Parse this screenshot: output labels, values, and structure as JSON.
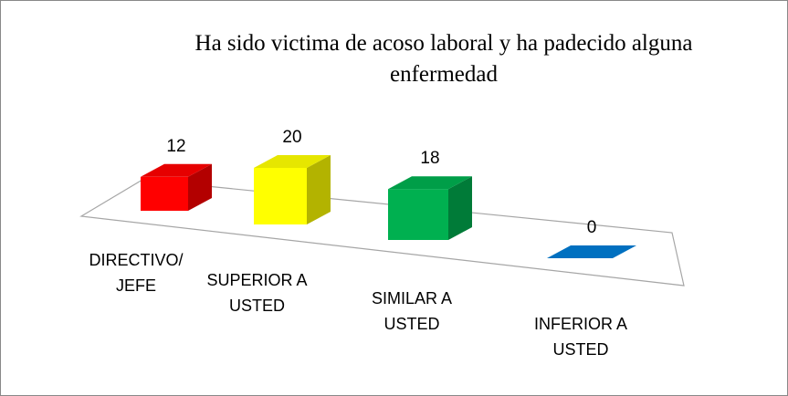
{
  "chart_data": {
    "type": "bar3d",
    "title": "Ha sido victima de acoso laboral y ha padecido alguna enfermedad",
    "categories": [
      "DIRECTIVO/ JEFE",
      "SUPERIOR A USTED",
      "SIMILAR A USTED",
      "INFERIOR A USTED"
    ],
    "values": [
      12,
      20,
      18,
      0
    ],
    "colors": [
      "#ff0000",
      "#ffff00",
      "#00b050",
      "#0070c0"
    ]
  }
}
